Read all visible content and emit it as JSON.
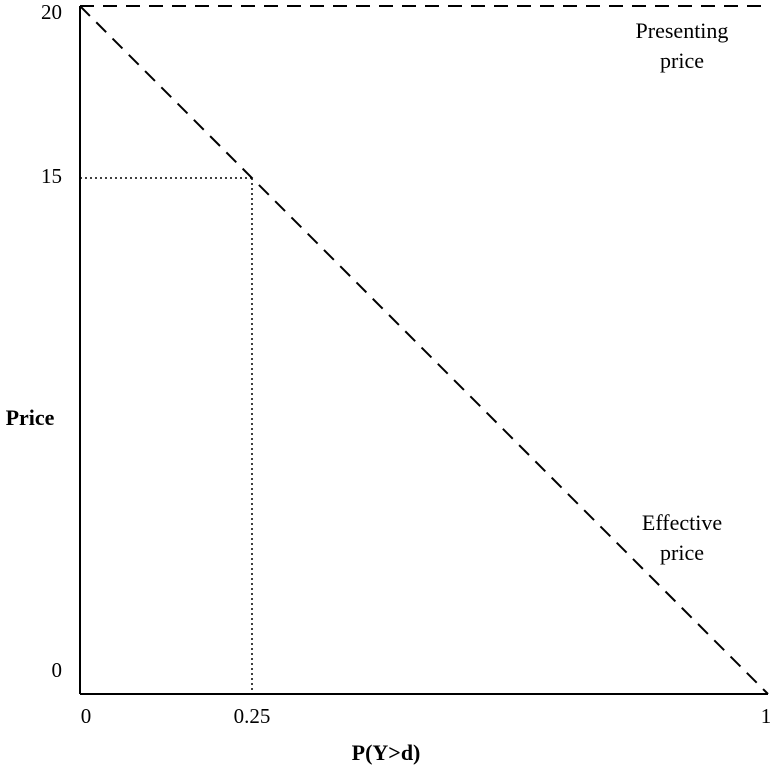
{
  "chart_data": {
    "type": "line",
    "x_label": "P(Y>d)",
    "y_label": "Price",
    "x": [
      0,
      1
    ],
    "series": [
      {
        "name": "Presenting price",
        "color": "#000000",
        "values": [
          20,
          20
        ]
      },
      {
        "name": "Effective price",
        "color": "#000000",
        "values": [
          20,
          0
        ]
      }
    ],
    "line_style": "dashed",
    "guide_style": "dotted",
    "xlim": [
      0,
      1
    ],
    "xticks": [
      0,
      0.25,
      1
    ],
    "ylim": [
      0,
      20
    ],
    "yticks": [
      0,
      15,
      20
    ],
    "grid": false
  }
}
